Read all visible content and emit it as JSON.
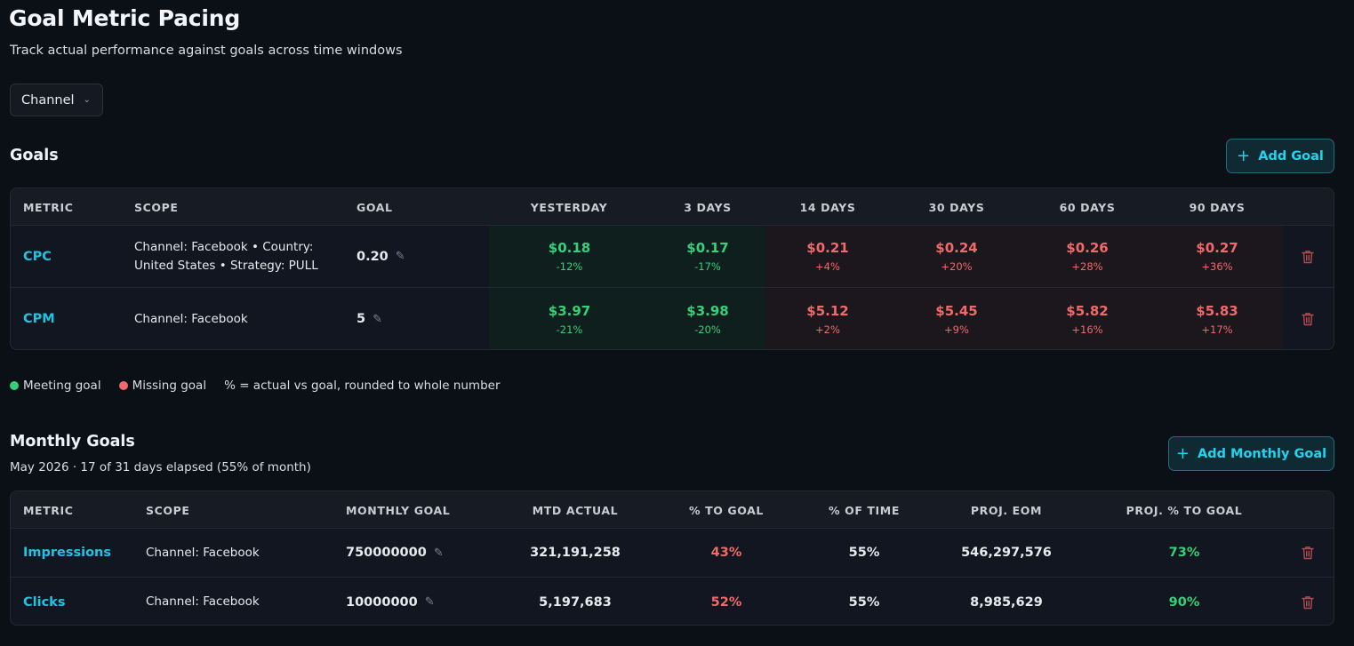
{
  "header": {
    "title": "Goal Metric Pacing",
    "subtitle": "Track actual performance against goals across time windows"
  },
  "filter": {
    "label": "Channel"
  },
  "goals": {
    "title": "Goals",
    "add_label": "Add Goal",
    "columns": [
      "METRIC",
      "SCOPE",
      "GOAL",
      "YESTERDAY",
      "3 DAYS",
      "14 DAYS",
      "30 DAYS",
      "60 DAYS",
      "90 DAYS"
    ],
    "rows": [
      {
        "metric": "CPC",
        "scope_line1": "Channel: Facebook • Country:",
        "scope_line2": "United States • Strategy: PULL",
        "goal": "0.20",
        "windows": [
          {
            "value": "$0.18",
            "pct": "-12%",
            "status": "good"
          },
          {
            "value": "$0.17",
            "pct": "-17%",
            "status": "good"
          },
          {
            "value": "$0.21",
            "pct": "+4%",
            "status": "bad"
          },
          {
            "value": "$0.24",
            "pct": "+20%",
            "status": "bad"
          },
          {
            "value": "$0.26",
            "pct": "+28%",
            "status": "bad"
          },
          {
            "value": "$0.27",
            "pct": "+36%",
            "status": "bad"
          }
        ]
      },
      {
        "metric": "CPM",
        "scope_line1": "Channel: Facebook",
        "scope_line2": "",
        "goal": "5",
        "windows": [
          {
            "value": "$3.97",
            "pct": "-21%",
            "status": "good"
          },
          {
            "value": "$3.98",
            "pct": "-20%",
            "status": "good"
          },
          {
            "value": "$5.12",
            "pct": "+2%",
            "status": "bad"
          },
          {
            "value": "$5.45",
            "pct": "+9%",
            "status": "bad"
          },
          {
            "value": "$5.82",
            "pct": "+16%",
            "status": "bad"
          },
          {
            "value": "$5.83",
            "pct": "+17%",
            "status": "bad"
          }
        ]
      }
    ]
  },
  "legend": {
    "meeting": "Meeting goal",
    "missing": "Missing goal",
    "note": "% = actual vs goal, rounded to whole number",
    "meeting_color": "#34d07a",
    "missing_color": "#f06a6a"
  },
  "monthly": {
    "title": "Monthly Goals",
    "subtitle": "May 2026 · 17 of 31 days elapsed (55% of month)",
    "add_label": "Add Monthly Goal",
    "columns": [
      "METRIC",
      "SCOPE",
      "MONTHLY GOAL",
      "MTD ACTUAL",
      "% TO GOAL",
      "% OF TIME",
      "PROJ. EOM",
      "PROJ. % TO GOAL"
    ],
    "rows": [
      {
        "metric": "Impressions",
        "scope": "Channel: Facebook",
        "goal": "750000000",
        "mtd": "321,191,258",
        "pct_goal": "43%",
        "pct_time": "55%",
        "proj_eom": "546,297,576",
        "proj_pct": "73%"
      },
      {
        "metric": "Clicks",
        "scope": "Channel: Facebook",
        "goal": "10000000",
        "mtd": "5,197,683",
        "pct_goal": "52%",
        "pct_time": "55%",
        "proj_eom": "8,985,629",
        "proj_pct": "90%"
      }
    ]
  },
  "colors": {
    "accent": "#22d3ee",
    "good": "#34d07a",
    "bad": "#f06a6a",
    "background": "#0b0f16"
  }
}
